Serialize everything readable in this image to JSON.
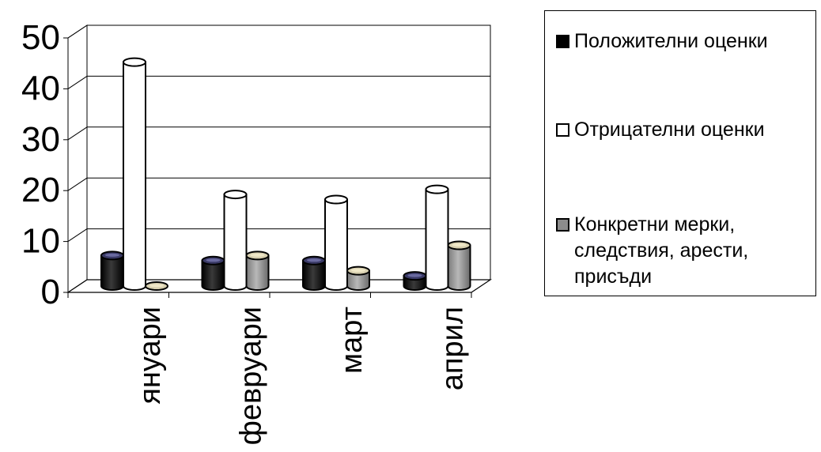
{
  "chart_data": {
    "type": "bar",
    "categories": [
      "януари",
      "февруари",
      "март",
      "април"
    ],
    "series": [
      {
        "name": "Положителни оценки",
        "values": [
          6,
          5,
          5,
          2
        ],
        "color": "#1a1a1a"
      },
      {
        "name": "Отрицателни оценки",
        "values": [
          44,
          18,
          17,
          19
        ],
        "color": "#ffffff"
      },
      {
        "name": "Конкретни мерки, следствия, арести, присъди",
        "values": [
          0,
          6,
          3,
          8
        ],
        "color": "#9a9a9a"
      }
    ],
    "yticks": [
      "0",
      "10",
      "20",
      "30",
      "40",
      "50"
    ],
    "ylim": [
      0,
      50
    ],
    "grid": true,
    "legend_position": "right",
    "style": "3d-cylinder"
  }
}
